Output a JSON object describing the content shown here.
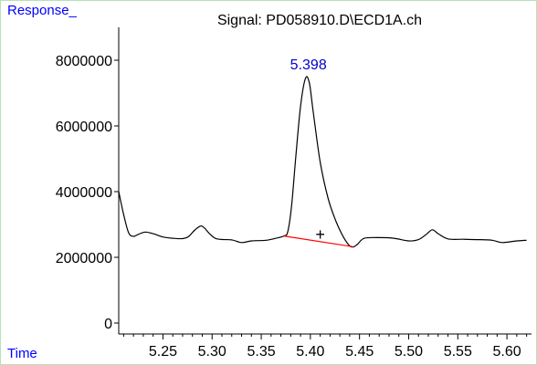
{
  "chart_data": {
    "type": "line",
    "title": "Signal: PD058910.D\\ECD1A.ch",
    "ylabel": "Response_",
    "xlabel": "Time",
    "xlim": [
      5.205,
      5.625
    ],
    "ylim": [
      0,
      9000000
    ],
    "grid": false,
    "x_ticks": [
      5.25,
      5.3,
      5.35,
      5.4,
      5.45,
      5.5,
      5.55,
      5.6
    ],
    "x_tick_labels": [
      "5.25",
      "5.30",
      "5.35",
      "5.40",
      "5.45",
      "5.50",
      "5.55",
      "5.60"
    ],
    "y_ticks": [
      0,
      2000000,
      4000000,
      6000000,
      8000000
    ],
    "y_tick_labels": [
      "0",
      "2000000",
      "4000000",
      "6000000",
      "8000000"
    ],
    "series": [
      {
        "color": "#000000",
        "points": [
          [
            5.205,
            4000000
          ],
          [
            5.21,
            3300000
          ],
          [
            5.215,
            2750000
          ],
          [
            5.22,
            2640000
          ],
          [
            5.225,
            2700000
          ],
          [
            5.232,
            2770000
          ],
          [
            5.24,
            2720000
          ],
          [
            5.25,
            2620000
          ],
          [
            5.26,
            2580000
          ],
          [
            5.27,
            2570000
          ],
          [
            5.276,
            2630000
          ],
          [
            5.282,
            2820000
          ],
          [
            5.288,
            2950000
          ],
          [
            5.292,
            2900000
          ],
          [
            5.298,
            2700000
          ],
          [
            5.305,
            2560000
          ],
          [
            5.32,
            2530000
          ],
          [
            5.33,
            2450000
          ],
          [
            5.34,
            2500000
          ],
          [
            5.355,
            2520000
          ],
          [
            5.365,
            2580000
          ],
          [
            5.373,
            2650000
          ],
          [
            5.377,
            2780000
          ],
          [
            5.381,
            3600000
          ],
          [
            5.385,
            5000000
          ],
          [
            5.39,
            6600000
          ],
          [
            5.395,
            7450000
          ],
          [
            5.399,
            7300000
          ],
          [
            5.403,
            6400000
          ],
          [
            5.41,
            4900000
          ],
          [
            5.418,
            3800000
          ],
          [
            5.426,
            3100000
          ],
          [
            5.434,
            2600000
          ],
          [
            5.44,
            2350000
          ],
          [
            5.444,
            2320000
          ],
          [
            5.448,
            2400000
          ],
          [
            5.455,
            2580000
          ],
          [
            5.47,
            2600000
          ],
          [
            5.485,
            2580000
          ],
          [
            5.5,
            2500000
          ],
          [
            5.51,
            2540000
          ],
          [
            5.518,
            2700000
          ],
          [
            5.524,
            2840000
          ],
          [
            5.53,
            2720000
          ],
          [
            5.54,
            2560000
          ],
          [
            5.555,
            2550000
          ],
          [
            5.57,
            2540000
          ],
          [
            5.585,
            2520000
          ],
          [
            5.595,
            2450000
          ],
          [
            5.61,
            2500000
          ],
          [
            5.62,
            2520000
          ]
        ]
      }
    ],
    "baseline": {
      "color": "#ff0000",
      "from": [
        5.373,
        2650000
      ],
      "to": [
        5.444,
        2320000
      ]
    },
    "peak_annotation": {
      "text": "5.398",
      "x": 5.398,
      "y": 7450000,
      "color": "#0000cc"
    },
    "marker": {
      "symbol": "+",
      "x": 5.41,
      "y": 2700000
    },
    "colors": {
      "axis": "#000000",
      "frame": "#b7e2b7",
      "axis_title": "#0000ff",
      "peak_label": "#0000cc"
    }
  }
}
